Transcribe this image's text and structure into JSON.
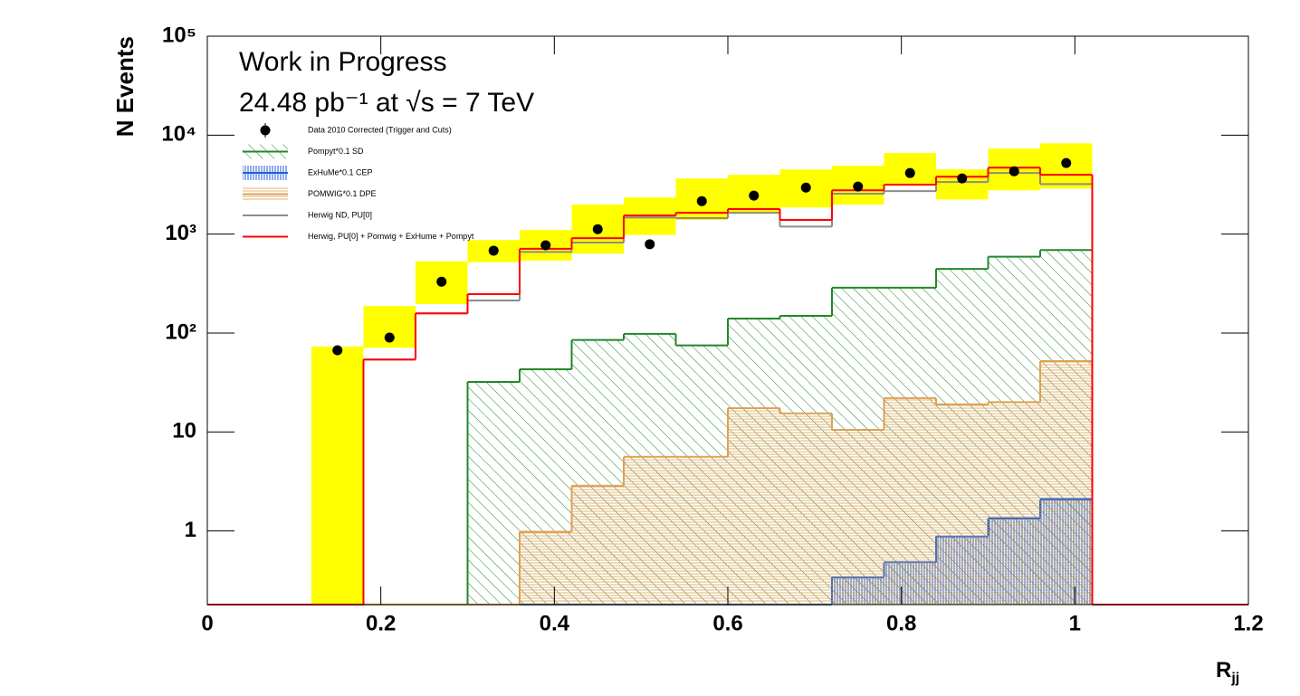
{
  "chart_data": {
    "type": "histogram",
    "annotations": [
      "Work in Progress",
      "24.48 pb⁻¹ at √s = 7 TeV"
    ],
    "y_label": "N Events",
    "x_label": "R",
    "x_label_sub": "jj",
    "xlim": [
      0,
      1.2
    ],
    "ylim": [
      0.18,
      100000
    ],
    "log_y": true,
    "xticks": [
      0,
      0.2,
      0.4,
      0.6,
      0.8,
      1,
      1.2
    ],
    "yticks": [
      1,
      10,
      {
        "value": 100,
        "label": "10²"
      },
      {
        "value": 1000,
        "label": "10³"
      },
      {
        "value": 10000,
        "label": "10⁴"
      },
      {
        "value": 100000,
        "label": "10⁵"
      }
    ],
    "bins": [
      0.12,
      0.18,
      0.24,
      0.3,
      0.36,
      0.42,
      0.48,
      0.54,
      0.6,
      0.66,
      0.72,
      0.78,
      0.84,
      0.9,
      0.96,
      1.02
    ],
    "series": [
      {
        "name": "Data 2010 Corrected (Trigger and Cuts)",
        "style": "points",
        "color": "#000000",
        "band_color": "#ffff00",
        "values": [
          67,
          90,
          330,
          680,
          770,
          1120,
          790,
          2150,
          2450,
          2950,
          3020,
          4140,
          3650,
          4310,
          5230
        ],
        "band_low": [
          0,
          71,
          196,
          520,
          540,
          635,
          980,
          1390,
          1600,
          1860,
          1990,
          3080,
          2240,
          2770,
          2890
        ],
        "band_high": [
          73,
          188,
          530,
          870,
          1100,
          1990,
          2340,
          3650,
          3970,
          4500,
          4900,
          6600,
          4500,
          7300,
          8270
        ]
      },
      {
        "name": "Pompyt*0.1 SD",
        "style": "hatch",
        "hatch": "diagonal",
        "color": "#22882a",
        "values": [
          0,
          0,
          0,
          32,
          43,
          85,
          98,
          75,
          140,
          149,
          287,
          287,
          445,
          590,
          690
        ]
      },
      {
        "name": "ExHuMe*0.1 CEP",
        "style": "hatch",
        "hatch": "vertical",
        "color": "#2060d8",
        "values": [
          0,
          0,
          0,
          0,
          0,
          0,
          0,
          0,
          0,
          0,
          0.34,
          0.48,
          0.88,
          1.34,
          2.09
        ]
      },
      {
        "name": "POMWIG*0.1 DPE",
        "style": "hatch",
        "hatch": "horizontal",
        "color": "#e0a050",
        "values": [
          0,
          0,
          0,
          0,
          0.98,
          2.86,
          5.6,
          5.6,
          17.4,
          15.4,
          10.5,
          22,
          19,
          20,
          52
        ]
      },
      {
        "name": "Herwig ND, PU[0]",
        "style": "line",
        "color": "#8c8c8c",
        "values": [
          0,
          54,
          158,
          213,
          660,
          820,
          1470,
          1450,
          1640,
          1190,
          2560,
          2720,
          3360,
          4140,
          3200
        ]
      },
      {
        "name": "Herwig, PU[0] + Pomwig + ExHume + Pompyt",
        "style": "line",
        "full_range": true,
        "color": "#ff0000",
        "values": [
          0,
          54,
          158,
          247,
          710,
          910,
          1540,
          1640,
          1790,
          1390,
          2770,
          3160,
          3800,
          4690,
          3970
        ]
      }
    ]
  }
}
